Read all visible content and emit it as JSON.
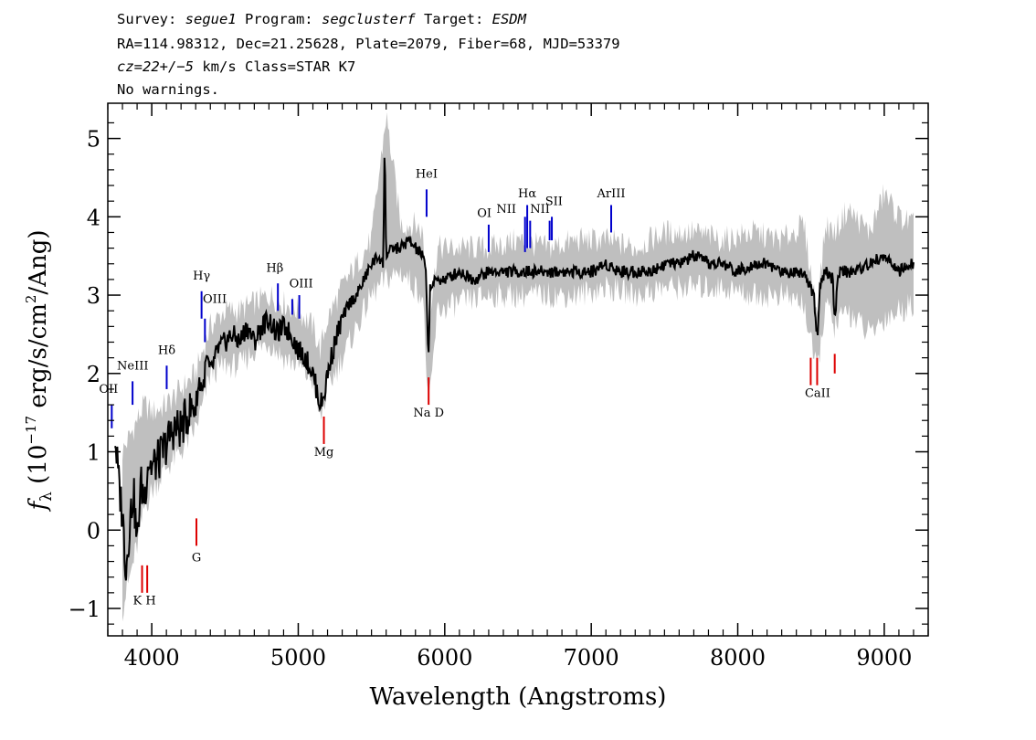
{
  "header": {
    "line1": {
      "survey_label": "Survey: ",
      "survey": "segue1",
      "program_label": " Program: ",
      "program": "segclusterf",
      "target_label": " Target: ",
      "target": "ESDM"
    },
    "line2": "RA=114.98312, Dec=21.25628, Plate=2079, Fiber=68, MJD=53379",
    "line3": {
      "cz": "cz=22+/−5",
      "rest": " km/s Class=STAR K7"
    },
    "line4": "No warnings."
  },
  "chart_data": {
    "type": "line",
    "xlabel": "Wavelength (Angstroms)",
    "ylabel": {
      "f": "f",
      "sub": "λ",
      "open": " (10",
      "exp": "−17",
      "mid": " erg/s/cm",
      "exp2": "2",
      "close": "/Ang)"
    },
    "xlim": [
      3700,
      9300
    ],
    "ylim": [
      -1.35,
      5.45
    ],
    "x_ticks": [
      4000,
      5000,
      6000,
      7000,
      8000,
      9000
    ],
    "x_tick_labels": [
      "4000",
      "5000",
      "6000",
      "7000",
      "8000",
      "9000"
    ],
    "y_ticks": [
      -1,
      0,
      1,
      2,
      3,
      4,
      5
    ],
    "y_tick_labels": [
      "−1",
      "0",
      "1",
      "2",
      "3",
      "4",
      "5"
    ],
    "series": [
      {
        "role": "error-band",
        "color": "#bfbfbf",
        "x": [
          3800,
          3850,
          3900,
          3950,
          4000,
          4100,
          4200,
          4300,
          4350,
          4400,
          4500,
          4600,
          4700,
          4800,
          4900,
          5000,
          5100,
          5150,
          5200,
          5300,
          5400,
          5500,
          5600,
          5700,
          5800,
          5850,
          5890,
          5950,
          6100,
          6300,
          6500,
          6700,
          6900,
          7100,
          7300,
          7500,
          7700,
          7900,
          8100,
          8300,
          8450,
          8540,
          8600,
          8660,
          8750,
          8900,
          9000,
          9100,
          9200
        ],
        "lower": [
          -1.0,
          -0.6,
          -0.2,
          0.3,
          0.5,
          0.8,
          1.0,
          1.3,
          1.6,
          2.0,
          2.1,
          2.1,
          2.3,
          2.4,
          2.2,
          2.1,
          1.9,
          1.4,
          1.8,
          2.2,
          2.6,
          3.0,
          3.2,
          3.3,
          3.1,
          3.0,
          1.5,
          2.8,
          2.9,
          3.0,
          3.0,
          3.0,
          3.0,
          3.1,
          3.0,
          3.1,
          3.1,
          3.1,
          3.0,
          3.0,
          2.9,
          2.0,
          2.9,
          2.6,
          2.8,
          2.5,
          2.7,
          2.8,
          2.9
        ],
        "upper": [
          1.0,
          1.2,
          1.4,
          1.6,
          1.5,
          1.6,
          1.8,
          2.0,
          2.3,
          2.6,
          2.8,
          2.8,
          2.9,
          3.0,
          2.9,
          2.8,
          2.6,
          2.3,
          2.7,
          3.1,
          3.4,
          3.7,
          5.3,
          3.9,
          3.9,
          3.8,
          2.6,
          3.6,
          3.6,
          3.6,
          3.7,
          3.6,
          3.7,
          3.7,
          3.6,
          3.8,
          3.8,
          3.7,
          3.8,
          3.7,
          3.9,
          2.8,
          3.9,
          3.8,
          4.1,
          3.8,
          4.3,
          4.0,
          3.9
        ]
      },
      {
        "role": "flux",
        "color": "#000000",
        "x": [
          3750,
          3775,
          3800,
          3825,
          3850,
          3875,
          3900,
          3925,
          3950,
          3975,
          4000,
          4050,
          4100,
          4150,
          4200,
          4250,
          4300,
          4325,
          4350,
          4375,
          4400,
          4450,
          4500,
          4550,
          4600,
          4650,
          4700,
          4750,
          4800,
          4850,
          4900,
          4950,
          5000,
          5050,
          5100,
          5125,
          5150,
          5175,
          5200,
          5250,
          5300,
          5350,
          5400,
          5450,
          5500,
          5550,
          5580,
          5590,
          5600,
          5650,
          5700,
          5750,
          5800,
          5850,
          5870,
          5890,
          5900,
          5950,
          6000,
          6100,
          6200,
          6300,
          6400,
          6500,
          6560,
          6600,
          6700,
          6800,
          6900,
          7000,
          7100,
          7200,
          7300,
          7400,
          7500,
          7600,
          7700,
          7800,
          7900,
          8000,
          8100,
          8200,
          8300,
          8400,
          8450,
          8500,
          8520,
          8545,
          8560,
          8600,
          8650,
          8662,
          8680,
          8700,
          8800,
          8900,
          9000,
          9100,
          9200
        ],
        "y": [
          1.2,
          0.6,
          0.2,
          -0.5,
          0.1,
          0.5,
          -0.2,
          0.6,
          0.4,
          0.9,
          0.8,
          0.9,
          1.1,
          1.3,
          1.3,
          1.5,
          1.6,
          1.9,
          1.8,
          2.2,
          2.0,
          2.3,
          2.4,
          2.5,
          2.4,
          2.6,
          2.4,
          2.6,
          2.7,
          2.5,
          2.6,
          2.5,
          2.3,
          2.2,
          2.0,
          1.8,
          1.6,
          1.7,
          2.0,
          2.4,
          2.7,
          2.9,
          3.0,
          3.2,
          3.4,
          3.5,
          3.4,
          5.0,
          3.5,
          3.6,
          3.6,
          3.7,
          3.6,
          3.5,
          3.3,
          2.2,
          3.1,
          3.2,
          3.2,
          3.3,
          3.2,
          3.3,
          3.3,
          3.3,
          3.3,
          3.3,
          3.3,
          3.3,
          3.3,
          3.3,
          3.4,
          3.3,
          3.3,
          3.3,
          3.4,
          3.4,
          3.5,
          3.4,
          3.4,
          3.3,
          3.4,
          3.4,
          3.3,
          3.3,
          3.3,
          3.1,
          3.0,
          2.4,
          3.1,
          3.3,
          3.2,
          2.6,
          3.2,
          3.3,
          3.3,
          3.4,
          3.5,
          3.3,
          3.4
        ]
      }
    ],
    "emission_lines": [
      {
        "label": "OII",
        "wavelength": 3727,
        "y_bottom": 1.3,
        "y_top": 1.6
      },
      {
        "label": "NeIII",
        "wavelength": 3869,
        "y_bottom": 1.6,
        "y_top": 1.9
      },
      {
        "label": "Hδ",
        "wavelength": 4102,
        "y_bottom": 1.8,
        "y_top": 2.1
      },
      {
        "label": "Hγ",
        "wavelength": 4340,
        "y_bottom": 2.7,
        "y_top": 3.05
      },
      {
        "label": "OIII",
        "wavelength": 4363,
        "y_bottom": 2.4,
        "y_top": 2.7
      },
      {
        "label": "Hβ",
        "wavelength": 4861,
        "y_bottom": 2.8,
        "y_top": 3.15
      },
      {
        "label": "OIII",
        "wavelength": 4959,
        "y_bottom": 2.75,
        "y_top": 2.95
      },
      {
        "label": "OIII",
        "wavelength": 5007,
        "y_bottom": 2.7,
        "y_top": 3.0
      },
      {
        "label": "HeI",
        "wavelength": 5876,
        "y_bottom": 4.0,
        "y_top": 4.35
      },
      {
        "label": "OI",
        "wavelength": 6300,
        "y_bottom": 3.55,
        "y_top": 3.9
      },
      {
        "label": "NII",
        "wavelength": 6548,
        "y_bottom": 3.55,
        "y_top": 4.0
      },
      {
        "label": "Hα",
        "wavelength": 6563,
        "y_bottom": 3.6,
        "y_top": 4.15
      },
      {
        "label": "NII",
        "wavelength": 6583,
        "y_bottom": 3.6,
        "y_top": 3.95
      },
      {
        "label": "SII",
        "wavelength": 6716,
        "y_bottom": 3.7,
        "y_top": 3.95
      },
      {
        "label": "SII",
        "wavelength": 6731,
        "y_bottom": 3.7,
        "y_top": 4.0
      },
      {
        "label": "ArIII",
        "wavelength": 7136,
        "y_bottom": 3.8,
        "y_top": 4.15
      }
    ],
    "emission_labels": [
      {
        "text": "OII",
        "wavelength": 3705,
        "y": 1.75
      },
      {
        "text": "NeIII",
        "wavelength": 3870,
        "y": 2.05
      },
      {
        "text": "Hδ",
        "wavelength": 4102,
        "y": 2.25
      },
      {
        "text": "Hγ",
        "wavelength": 4340,
        "y": 3.2
      },
      {
        "text": "OIII",
        "wavelength": 4430,
        "y": 2.9
      },
      {
        "text": "Hβ",
        "wavelength": 4840,
        "y": 3.3
      },
      {
        "text": "OIII",
        "wavelength": 5020,
        "y": 3.1
      },
      {
        "text": "HeI",
        "wavelength": 5876,
        "y": 4.5
      },
      {
        "text": "OI",
        "wavelength": 6270,
        "y": 4.0
      },
      {
        "text": "NII",
        "wavelength": 6420,
        "y": 4.05
      },
      {
        "text": "Hα",
        "wavelength": 6563,
        "y": 4.25
      },
      {
        "text": "NII",
        "wavelength": 6650,
        "y": 4.05
      },
      {
        "text": "SII",
        "wavelength": 6745,
        "y": 4.15
      },
      {
        "text": "ArIII",
        "wavelength": 7136,
        "y": 4.25
      }
    ],
    "absorption_lines": [
      {
        "label": "K",
        "wavelength": 3934,
        "y_bottom": -0.8,
        "y_top": -0.45
      },
      {
        "label": "H",
        "wavelength": 3969,
        "y_bottom": -0.8,
        "y_top": -0.45
      },
      {
        "label": "G",
        "wavelength": 4305,
        "y_bottom": -0.2,
        "y_top": 0.15
      },
      {
        "label": "Mg",
        "wavelength": 5175,
        "y_bottom": 1.1,
        "y_top": 1.45
      },
      {
        "label": "Na",
        "wavelength": 5890,
        "y_bottom": 1.6,
        "y_top": 1.95
      },
      {
        "label": "CaII",
        "wavelength": 8498,
        "y_bottom": 1.85,
        "y_top": 2.2
      },
      {
        "label": "CaII",
        "wavelength": 8542,
        "y_bottom": 1.85,
        "y_top": 2.2
      },
      {
        "label": "CaII",
        "wavelength": 8662,
        "y_bottom": 2.0,
        "y_top": 2.25
      }
    ],
    "absorption_labels": [
      {
        "text": "K H",
        "wavelength": 3950,
        "y": -0.95
      },
      {
        "text": "G",
        "wavelength": 4305,
        "y": -0.4
      },
      {
        "text": "Mg",
        "wavelength": 5175,
        "y": 0.95
      },
      {
        "text": "Na  D",
        "wavelength": 5890,
        "y": 1.45
      },
      {
        "text": "CaII",
        "wavelength": 8545,
        "y": 1.7
      }
    ],
    "colors": {
      "emission": "#0000cc",
      "absorption": "#dd0000",
      "band": "#bfbfbf",
      "flux": "#000000"
    }
  }
}
